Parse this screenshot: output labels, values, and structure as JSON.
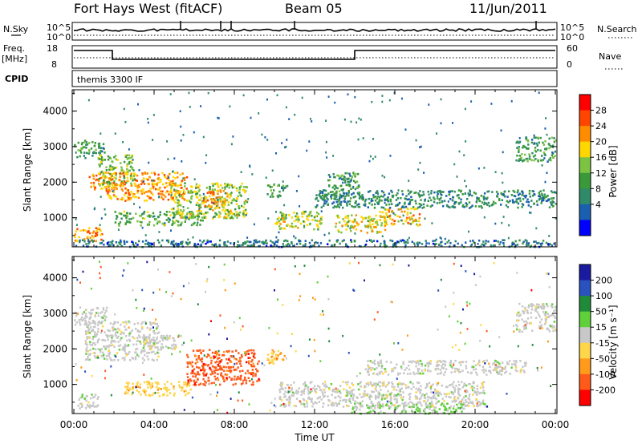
{
  "header": {
    "station": "Fort Hays West (fitACF)",
    "beam": "Beam 05",
    "date": "11/Jun/2011"
  },
  "summary": {
    "nsky_label": "N.Sky",
    "nsky_ticks": [
      "10^5",
      "10^0"
    ],
    "nsearch_label": "N.Search",
    "freq_label": "Freq.",
    "freq_unit": "[MHz]",
    "freq_ticks": [
      "18",
      "8"
    ],
    "nave_label": "Nave",
    "nave_ticks": [
      "60",
      "0"
    ],
    "cpid_label": "CPID",
    "cpid_text": "themis 3300 IF"
  },
  "colorbars": {
    "power": {
      "label": "Power [dB]",
      "ticks": [
        "28",
        "24",
        "20",
        "16",
        "12",
        "8",
        "4"
      ],
      "colors": [
        "#ff0000",
        "#ff4500",
        "#ff8c00",
        "#ffd700",
        "#7cc243",
        "#3a9a3a",
        "#2f8a6a",
        "#1a5fb0",
        "#0000ff"
      ]
    },
    "velocity": {
      "label": "Velocity [m s⁻¹]",
      "ticks": [
        "200",
        "100",
        "50",
        "15",
        "-15",
        "-50",
        "-100",
        "-200"
      ],
      "colors": [
        "#1a1aa0",
        "#2a52be",
        "#1e8a3a",
        "#5fd03a",
        "#c8c8c8",
        "#ffd54a",
        "#ff9a1a",
        "#ff5a1a",
        "#ff0000"
      ]
    }
  },
  "axes": {
    "xlabel": "Time UT",
    "xticks": [
      "00:00",
      "04:00",
      "08:00",
      "12:00",
      "16:00",
      "20:00",
      "00:00"
    ],
    "ylabel": "Slant Range [km]",
    "yticks": [
      "4000",
      "3000",
      "2000",
      "1000"
    ]
  },
  "chart_data": [
    {
      "type": "heatmap",
      "title": "Power",
      "xlabel": "Time UT",
      "ylabel": "Slant Range [km]",
      "xlim": [
        "00:00",
        "24:00"
      ],
      "ylim": [
        180,
        4600
      ],
      "zlabel": "Power [dB]",
      "zlim": [
        0,
        30
      ],
      "regions": [
        {
          "t0": 0.0,
          "t1": 1.5,
          "r0": 2700,
          "r1": 3200,
          "value": 10
        },
        {
          "t0": 0.7,
          "t1": 1.7,
          "r0": 1800,
          "r1": 2300,
          "value": 22
        },
        {
          "t0": 1.2,
          "t1": 3.0,
          "r0": 1900,
          "r1": 2800,
          "value": 14
        },
        {
          "t0": 1.5,
          "t1": 5.6,
          "r0": 1500,
          "r1": 2300,
          "value": 22
        },
        {
          "t0": 2.0,
          "t1": 6.4,
          "r0": 800,
          "r1": 1200,
          "value": 13
        },
        {
          "t0": 4.8,
          "t1": 8.6,
          "r0": 1000,
          "r1": 2000,
          "value": 16
        },
        {
          "t0": 6.3,
          "t1": 7.6,
          "r0": 1300,
          "r1": 1800,
          "value": 22
        },
        {
          "t0": 0.0,
          "t1": 1.4,
          "r0": 350,
          "r1": 750,
          "value": 23
        },
        {
          "t0": 9.6,
          "t1": 10.6,
          "r0": 1600,
          "r1": 2000,
          "value": 10
        },
        {
          "t0": 10.0,
          "t1": 12.4,
          "r0": 700,
          "r1": 1200,
          "value": 16
        },
        {
          "t0": 12.6,
          "t1": 14.2,
          "r0": 1600,
          "r1": 2300,
          "value": 10
        },
        {
          "t0": 13.0,
          "t1": 15.6,
          "r0": 600,
          "r1": 1100,
          "value": 18
        },
        {
          "t0": 15.2,
          "t1": 17.2,
          "r0": 800,
          "r1": 1300,
          "value": 20
        },
        {
          "t0": 12.0,
          "t1": 24.0,
          "r0": 1300,
          "r1": 1800,
          "value": 8
        },
        {
          "t0": 22.0,
          "t1": 24.0,
          "r0": 2600,
          "r1": 3300,
          "value": 10
        },
        {
          "t0": 0.0,
          "t1": 24.0,
          "r0": 200,
          "r1": 400,
          "value": 6
        }
      ]
    },
    {
      "type": "heatmap",
      "title": "Velocity",
      "xlabel": "Time UT",
      "ylabel": "Slant Range [km]",
      "xlim": [
        "00:00",
        "24:00"
      ],
      "ylim": [
        180,
        4600
      ],
      "zlabel": "Velocity [m s⁻¹]",
      "zlim": [
        -200,
        200
      ],
      "regions": [
        {
          "t0": 0.0,
          "t1": 1.6,
          "r0": 2700,
          "r1": 3200,
          "value": 0
        },
        {
          "t0": 0.5,
          "t1": 4.2,
          "r0": 1700,
          "r1": 2800,
          "value": 0
        },
        {
          "t0": 3.4,
          "t1": 5.4,
          "r0": 2000,
          "r1": 2400,
          "value": 0
        },
        {
          "t0": 5.6,
          "t1": 9.2,
          "r0": 1000,
          "r1": 2000,
          "value": -150
        },
        {
          "t0": 2.5,
          "t1": 5.8,
          "r0": 700,
          "r1": 1100,
          "value": -60
        },
        {
          "t0": 0.0,
          "t1": 1.2,
          "r0": 350,
          "r1": 750,
          "value": 0
        },
        {
          "t0": 9.6,
          "t1": 10.6,
          "r0": 1600,
          "r1": 2000,
          "value": -60
        },
        {
          "t0": 10.2,
          "t1": 20.5,
          "r0": 400,
          "r1": 1100,
          "value": 0
        },
        {
          "t0": 13.8,
          "t1": 19.5,
          "r0": 200,
          "r1": 500,
          "value": 30
        },
        {
          "t0": 14.5,
          "t1": 22.5,
          "r0": 1300,
          "r1": 1700,
          "value": 0
        },
        {
          "t0": 22.0,
          "t1": 24.0,
          "r0": 2500,
          "r1": 3300,
          "value": 0
        }
      ]
    }
  ]
}
